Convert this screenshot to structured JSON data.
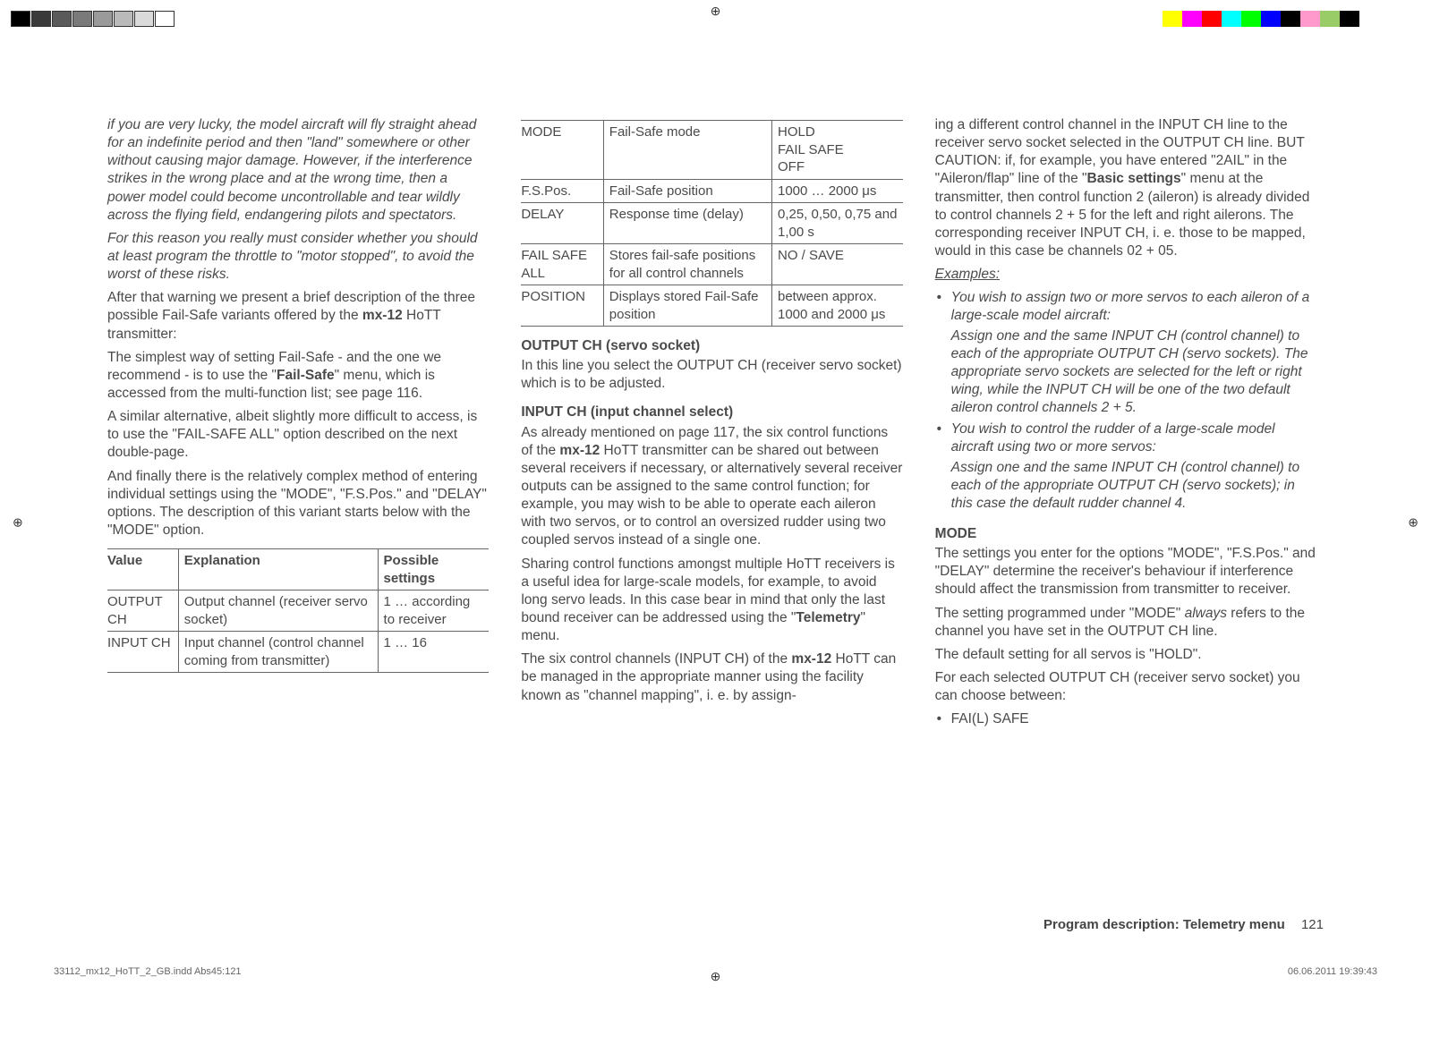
{
  "top_colors_left": [
    "#000000",
    "#3a3a3a",
    "#5a5a5a",
    "#7a7a7a",
    "#9a9a9a",
    "#bababa",
    "#dadada",
    "#ffffff"
  ],
  "top_colors_right": [
    "#ffffff",
    "#ffff00",
    "#ff00ff",
    "#ff0000",
    "#00ffff",
    "#00ff00",
    "#0000ff",
    "#000000",
    "#ff99cc",
    "#99cc66",
    "#000000"
  ],
  "reg_glyph": "⊕",
  "col1": {
    "p1": "if you are very lucky, the model aircraft will fly straight ahead for an indefinite period and then \"land\" somewhere or other without causing major damage. However, if the interference strikes in the wrong place and at the wrong time, then a power model could become uncontrollable and tear wildly across the flying field, endangering pilots and spectators.",
    "p2": "For this reason you really must consider whether you should at least program the throttle to \"motor stopped\", to avoid the worst of these risks.",
    "p3a": "After that warning we present a brief description of the three possible Fail-Safe variants offered by the ",
    "mx": "mx-12",
    "p3b": " HoTT transmitter:",
    "p4a": "The simplest way of setting Fail-Safe - and the one we recommend - is to use the \"",
    "failSafe": "Fail-Safe",
    "p4b": "\" menu, which is accessed from the multi-function list; see page 116.",
    "p5": "A similar alternative, albeit slightly more difficult to access, is to use the \"FAIL-SAFE ALL\" option described on the next double-page.",
    "p6": "And finally there is the relatively complex method of entering individual settings using the \"MODE\", \"F.S.Pos.\" and \"DELAY\" options. The description of this variant starts below with the \"MODE\" option.",
    "table": {
      "headers": [
        "Value",
        "Explanation",
        "Possible settings"
      ],
      "rows": [
        [
          "OUTPUT CH",
          "Output channel (receiver servo socket)",
          "1 … according to receiver"
        ],
        [
          "INPUT CH",
          "Input channel (control channel coming from transmitter)",
          "1 … 16"
        ]
      ]
    }
  },
  "col2": {
    "table": {
      "rows": [
        [
          "MODE",
          "Fail-Safe mode",
          "HOLD\nFAIL SAFE\nOFF"
        ],
        [
          "F.S.Pos.",
          "Fail-Safe position",
          "1000 … 2000 μs"
        ],
        [
          "DELAY",
          "Response time (delay)",
          "0,25, 0,50, 0,75 and 1,00 s"
        ],
        [
          "FAIL SAFE ALL",
          "Stores fail-safe positions for all control channels",
          "NO / SAVE"
        ],
        [
          "POSITION",
          "Displays stored Fail-Safe position",
          "between approx. 1000 and 2000 μs"
        ]
      ]
    },
    "h1": "OUTPUT CH (servo socket)",
    "p1": "In this line you select the OUTPUT CH (receiver servo socket) which is to be adjusted.",
    "h2": "INPUT CH (input channel select)",
    "p2a": "As already mentioned on page 117, the six control functions of the ",
    "mx": "mx-12",
    "p2b": " HoTT transmitter can be shared out between several receivers if necessary, or alternatively several receiver outputs can be assigned to the same control function; for example, you may wish to be able to operate each aileron with two servos, or to control an oversized rudder using two coupled servos instead of a single one.",
    "p3a": "Sharing control functions amongst multiple HoTT receivers is a useful idea for large-scale models, for example, to avoid long servo leads. In this case bear in mind that only the last bound receiver can be addressed using the \"",
    "telemetry": "Telemetry",
    "p3b": "\" menu.",
    "p4a": "The six control channels (INPUT CH) of the ",
    "p4b": " HoTT can be managed in the appropriate manner using the facility known as \"channel mapping\", i. e. by assign-"
  },
  "col3": {
    "p1a": "ing a different control channel in the INPUT CH line to the receiver servo socket selected in the OUTPUT CH line. BUT CAUTION: if, for example, you have entered \"2AIL\" in the \"Aileron/flap\" line of the \"",
    "basic": "Basic settings",
    "p1b": "\" menu at the transmitter, then control function 2 (aileron) is already divided to control channels 2 + 5 for the left and right ailerons. The corresponding receiver INPUT CH, i. e. those to be mapped, would in this case be channels 02 + 05.",
    "examplesLabel": "Examples:",
    "ex1_line1": "You wish to assign two or more servos to each aileron of a large-scale model aircraft:",
    "ex1_line2": "Assign one and the same INPUT CH (control channel) to each of the appropriate OUTPUT CH (servo sockets). The appropriate servo sockets are selected for the left or right wing, while the INPUT CH will be one of the two default aileron control channels 2 + 5.",
    "ex2_line1": "You wish to control the rudder of a large-scale model aircraft using two or more servos:",
    "ex2_line2": "Assign one and the same INPUT CH (control channel) to each of the appropriate OUTPUT CH (servo sockets); in this case the default rudder channel 4.",
    "hMode": "MODE",
    "pMode1": "The settings you enter for the options \"MODE\", \"F.S.Pos.\" and \"DELAY\" determine the receiver's behaviour if interference should affect the transmission from transmitter to receiver.",
    "pMode2a": "The setting programmed under \"MODE\" ",
    "always": "always",
    "pMode2b": " refers to the channel you have set in the OUTPUT CH line.",
    "pMode3": "The default setting for all servos is \"HOLD\".",
    "pMode4": "For each selected OUTPUT CH (receiver servo socket) you can choose between:",
    "bullet": "FAI(L) SAFE"
  },
  "footer": {
    "label": "Program description: Telemetry menu",
    "page": "121"
  },
  "printFooter": {
    "left": "33112_mx12_HoTT_2_GB.indd   Abs45:121",
    "right": "06.06.2011   19:39:43"
  }
}
